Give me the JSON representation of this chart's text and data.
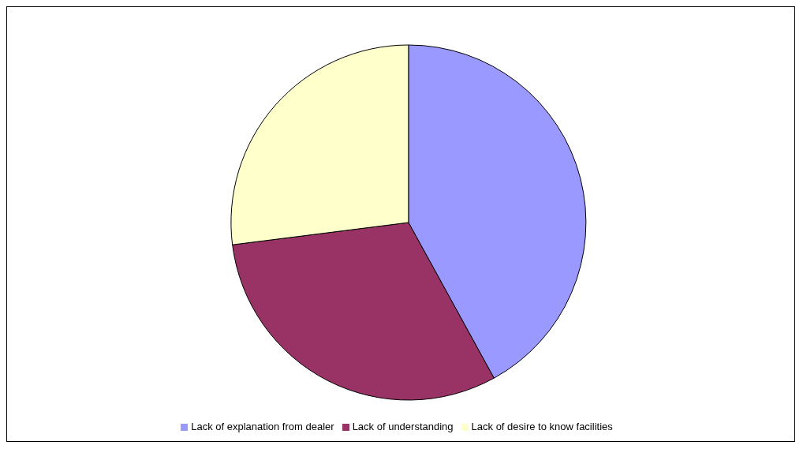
{
  "chart_data": {
    "type": "pie",
    "categories": [
      "Lack of explanation from dealer",
      "Lack of understanding",
      "Lack of desire to know facilities"
    ],
    "values": [
      42,
      31,
      27
    ],
    "colors": [
      "#9999ff",
      "#993366",
      "#ffffcc"
    ],
    "legend": "bottom"
  }
}
